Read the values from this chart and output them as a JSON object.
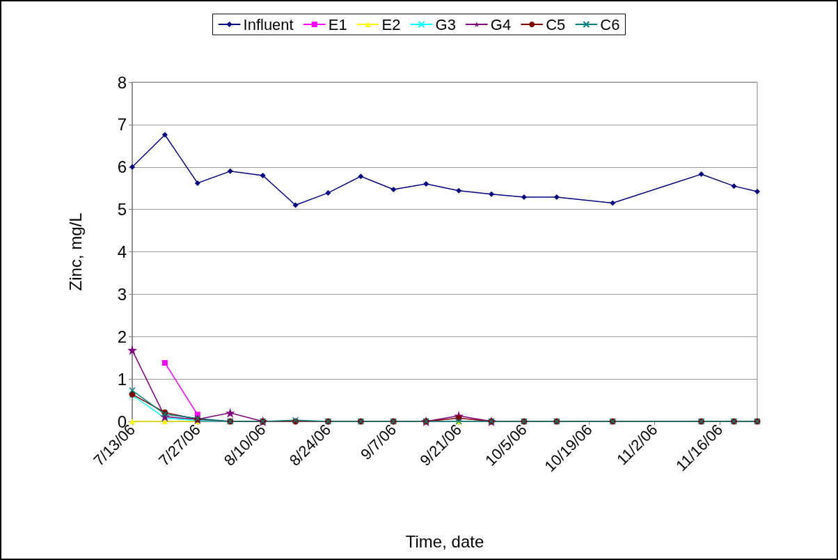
{
  "chart_data": {
    "type": "line",
    "xlabel": "Time, date",
    "ylabel": "Zinc, mg/L",
    "x": [
      "--07-13",
      "--07-20",
      "--07-27",
      "--08-03",
      "--08-10",
      "--08-17",
      "--08-24",
      "--08-31",
      "--09-07",
      "--09-14",
      "--09-21",
      "--09-28",
      "--10-05",
      "--10-12",
      "--10-24",
      "--11-12",
      "--11-19",
      "--11-24"
    ],
    "series": [
      {
        "name": "Influent",
        "color": "#000080",
        "marker": "diamond",
        "values": [
          6.0,
          6.76,
          5.62,
          5.9,
          5.8,
          5.1,
          5.39,
          5.78,
          5.47,
          5.6,
          5.44,
          5.36,
          5.29,
          5.29,
          5.15,
          5.83,
          5.55,
          5.42
        ]
      },
      {
        "name": "E1",
        "color": "#ff00ff",
        "marker": "square",
        "values": [
          null,
          1.38,
          0.16,
          null,
          null,
          null,
          null,
          null,
          null,
          null,
          null,
          null,
          null,
          null,
          null,
          null,
          null,
          null
        ]
      },
      {
        "name": "E2",
        "color": "#ffff00",
        "marker": "triangle",
        "values": [
          0,
          0,
          0,
          null,
          null,
          null,
          null,
          null,
          null,
          null,
          0,
          null,
          null,
          null,
          null,
          null,
          null,
          null
        ]
      },
      {
        "name": "G3",
        "color": "#00ffff",
        "marker": "cross",
        "values": [
          0.62,
          0.08,
          0.02,
          0,
          null,
          null,
          null,
          null,
          null,
          null,
          null,
          null,
          null,
          null,
          null,
          null,
          null,
          null
        ]
      },
      {
        "name": "G4",
        "color": "#800080",
        "marker": "star",
        "values": [
          1.68,
          0.11,
          0.05,
          0.2,
          0,
          null,
          null,
          null,
          null,
          0,
          0.13,
          0,
          null,
          null,
          null,
          null,
          null,
          null
        ]
      },
      {
        "name": "C5",
        "color": "#800000",
        "marker": "circle",
        "values": [
          0.64,
          0.21,
          0.05,
          0,
          0,
          0,
          0,
          0,
          0,
          0,
          0.08,
          0,
          0,
          0,
          0,
          0,
          0,
          0
        ]
      },
      {
        "name": "C6",
        "color": "#008080",
        "marker": "cross",
        "values": [
          0.73,
          0.17,
          0.07,
          0,
          0,
          0.03,
          0,
          0,
          0,
          0,
          0,
          0,
          0,
          0,
          0,
          0,
          0,
          0
        ]
      }
    ],
    "xlim": [
      "--07-13",
      "--11-24"
    ],
    "xticks": [
      {
        "value": "--07-13",
        "label": "7/13/06"
      },
      {
        "value": "--07-27",
        "label": "7/27/06"
      },
      {
        "value": "--08-10",
        "label": "8/10/06"
      },
      {
        "value": "--08-24",
        "label": "8/24/06"
      },
      {
        "value": "--09-07",
        "label": "9/7/06"
      },
      {
        "value": "--09-21",
        "label": "9/21/06"
      },
      {
        "value": "--10-05",
        "label": "10/5/06"
      },
      {
        "value": "--10-19",
        "label": "10/19/06"
      },
      {
        "value": "--11-02",
        "label": "11/2/06"
      },
      {
        "value": "--11-16",
        "label": "11/16/06"
      }
    ],
    "ylim": [
      0,
      8
    ],
    "yticks": [
      0,
      1,
      2,
      3,
      4,
      5,
      6,
      7,
      8
    ],
    "grid": "y",
    "legend": "top",
    "line_style": "solid"
  }
}
